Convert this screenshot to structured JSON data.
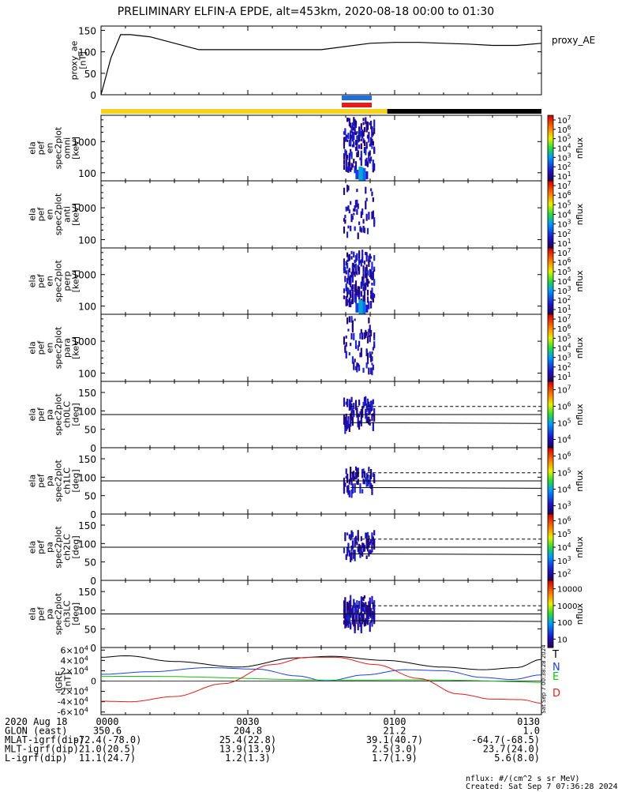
{
  "title": "PRELIMINARY ELFIN-A EPDE, alt=453km, 2020-08-18 00:00 to 01:30",
  "colors": {
    "yellow": "#f6d21c",
    "black": "#000000",
    "blue": "#1f6fe0",
    "red": "#e11d1d",
    "green": "#10c010"
  },
  "chart_data": [
    {
      "type": "line",
      "panel": "proxy_ae",
      "ylabel": [
        "proxy_ae",
        "[nT]"
      ],
      "ylim": [
        0,
        160
      ],
      "yticks": [
        0,
        50,
        100,
        150
      ],
      "legend": "proxy_AE",
      "x_minutes": [
        0,
        2,
        4,
        6,
        10,
        20,
        30,
        40,
        45,
        55,
        60,
        65,
        70,
        75,
        80,
        85,
        90
      ],
      "values": [
        0,
        85,
        140,
        140,
        135,
        105,
        105,
        105,
        105,
        120,
        122,
        122,
        120,
        118,
        115,
        115,
        120
      ]
    },
    {
      "type": "heatmap",
      "panel": "ela pef en spec2plot omni",
      "ylabel": [
        "ela",
        "pef",
        "en",
        "spec2plot",
        "omni",
        "[keV]"
      ],
      "yticks": [
        100,
        1000
      ],
      "colorbar": {
        "label": "nflux",
        "ticks": [
          "10^1",
          "10^2",
          "10^3",
          "10^4",
          "10^5",
          "10^6",
          "10^7"
        ]
      }
    },
    {
      "type": "heatmap",
      "panel": "ela pef en spec2plot anti",
      "ylabel": [
        "ela",
        "pef",
        "en",
        "spec2plot",
        "anti",
        "[keV]"
      ],
      "yticks": [
        100,
        1000
      ],
      "colorbar": {
        "label": "nflux",
        "ticks": [
          "10^1",
          "10^2",
          "10^3",
          "10^4",
          "10^5",
          "10^6",
          "10^7"
        ]
      }
    },
    {
      "type": "heatmap",
      "panel": "ela pef en spec2plot perp",
      "ylabel": [
        "ela",
        "pef",
        "en",
        "spec2plot",
        "perp",
        "[keV]"
      ],
      "yticks": [
        100,
        1000
      ],
      "colorbar": {
        "label": "nflux",
        "ticks": [
          "10^1",
          "10^2",
          "10^3",
          "10^4",
          "10^5",
          "10^6",
          "10^7"
        ]
      }
    },
    {
      "type": "heatmap",
      "panel": "ela pef en spec2plot para",
      "ylabel": [
        "ela",
        "pef",
        "en",
        "spec2plot",
        "para",
        "[keV]"
      ],
      "yticks": [
        100,
        1000
      ],
      "colorbar": {
        "label": "nflux",
        "ticks": [
          "10^1",
          "10^2",
          "10^3",
          "10^4",
          "10^5",
          "10^6",
          "10^7"
        ]
      }
    },
    {
      "type": "heatmap",
      "panel": "ela pef pa spec2plot ch0LC",
      "ylabel": [
        "ela",
        "pef",
        "pa",
        "spec2plot",
        "ch0LC",
        "[deg]"
      ],
      "yticks": [
        0,
        50,
        100,
        150
      ],
      "colorbar": {
        "label": "nflux",
        "ticks": [
          "10^4",
          "10^5",
          "10^6",
          "10^7"
        ]
      }
    },
    {
      "type": "heatmap",
      "panel": "ela pef pa spec2plot ch1LC",
      "ylabel": [
        "ela",
        "pef",
        "pa",
        "spec2plot",
        "ch1LC",
        "[deg]"
      ],
      "yticks": [
        0,
        50,
        100,
        150
      ],
      "colorbar": {
        "label": "nflux",
        "ticks": [
          "10^3",
          "10^4",
          "10^5",
          "10^6"
        ]
      }
    },
    {
      "type": "heatmap",
      "panel": "ela pef pa spec2plot ch2LC",
      "ylabel": [
        "ela",
        "pef",
        "pa",
        "spec2plot",
        "ch2LC",
        "[deg]"
      ],
      "yticks": [
        0,
        50,
        100,
        150
      ],
      "colorbar": {
        "label": "nflux",
        "ticks": [
          "10^2",
          "10^3",
          "10^4",
          "10^5",
          "10^6"
        ]
      }
    },
    {
      "type": "heatmap",
      "panel": "ela pef pa spec2plot ch3LC",
      "ylabel": [
        "ela",
        "pef",
        "pa",
        "spec2plot",
        "ch3LC",
        "[deg]"
      ],
      "yticks": [
        0,
        50,
        100,
        150
      ],
      "colorbar": {
        "label": "nflux",
        "ticks": [
          "10",
          "100",
          "1000",
          "10000"
        ]
      }
    },
    {
      "type": "line",
      "panel": "IGRF",
      "ylabel": [
        "IGRF",
        "[nT]"
      ],
      "ylim": [
        -65000,
        65000
      ],
      "yticks": [
        "6×10^4",
        "4×10^4",
        "2×10^4",
        "0",
        "-2×10^4",
        "-4×10^4",
        "-6×10^4"
      ],
      "series": [
        {
          "name": "T",
          "color": "#000000"
        },
        {
          "name": "N",
          "color": "#1f3fe0"
        },
        {
          "name": "E",
          "color": "#10c010"
        },
        {
          "name": "D",
          "color": "#e11d1d"
        }
      ]
    }
  ],
  "xaxis": {
    "ticks": [
      "0000",
      "0030",
      "0100",
      "0130"
    ],
    "rows": [
      {
        "label": "2020 Aug 18",
        "values": [
          "0000",
          "0030",
          "0100",
          "0130"
        ]
      },
      {
        "label": "GLON (east)",
        "values": [
          "350.6",
          "204.8",
          "21.2",
          "1.0"
        ]
      },
      {
        "label": "MLAT-igrf(dip)",
        "values": [
          "-72.4(-78.0)",
          "25.4(22.8)",
          "39.1(40.7)",
          "-64.7(-68.5)"
        ]
      },
      {
        "label": "MLT-igrf(dip)",
        "values": [
          "21.0(20.5)",
          "13.9(13.9)",
          "2.5(3.0)",
          "23.7(24.0)"
        ]
      },
      {
        "label": "L-igrf(dip)",
        "values": [
          "11.1(24.7)",
          "1.2(1.3)",
          "1.7(1.9)",
          "5.6(8.0)"
        ]
      }
    ]
  },
  "footer": {
    "units": "nflux: #/(cm^2 s sr MeV)",
    "created": "Created: Sat Sep  7 07:36:28 2024",
    "side_stamp": "Sat Sep  7 00:38:28 2024"
  }
}
